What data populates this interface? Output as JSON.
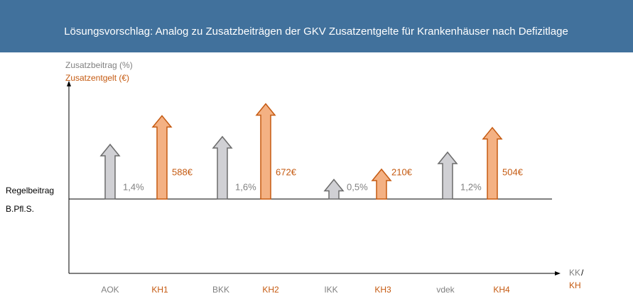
{
  "chart_data": {
    "type": "arrow-bar",
    "title": "Lösungsvorschlag: Analog zu Zusatzbeiträgen der GKV Zusatzentgelte für Krankenhäuser nach Defizitlage",
    "baseline_label": [
      "Regelbeitrag",
      "B.Pfl.S."
    ],
    "x_label": [
      "KK",
      "/",
      "KH"
    ],
    "series": [
      {
        "name": "Zusatzbeitrag (%)",
        "color": "#d0d0d4",
        "stroke": "#6b6b6b",
        "label_color": "#808080",
        "categories": [
          "AOK",
          "BKK",
          "IKK",
          "vdek"
        ],
        "values": [
          1.4,
          1.6,
          0.5,
          1.2
        ],
        "value_labels": [
          "1,4%",
          "1,6%",
          "0,5%",
          "1,2%"
        ]
      },
      {
        "name": "Zusatzentgelt (€)",
        "color": "#f4b183",
        "stroke": "#c55a11",
        "label_color": "#c55a11",
        "categories": [
          "KH1",
          "KH2",
          "KH3",
          "KH4"
        ],
        "values": [
          588,
          672,
          210,
          504
        ],
        "value_labels": [
          "588€",
          "672€",
          "210€",
          "504€"
        ]
      }
    ]
  }
}
